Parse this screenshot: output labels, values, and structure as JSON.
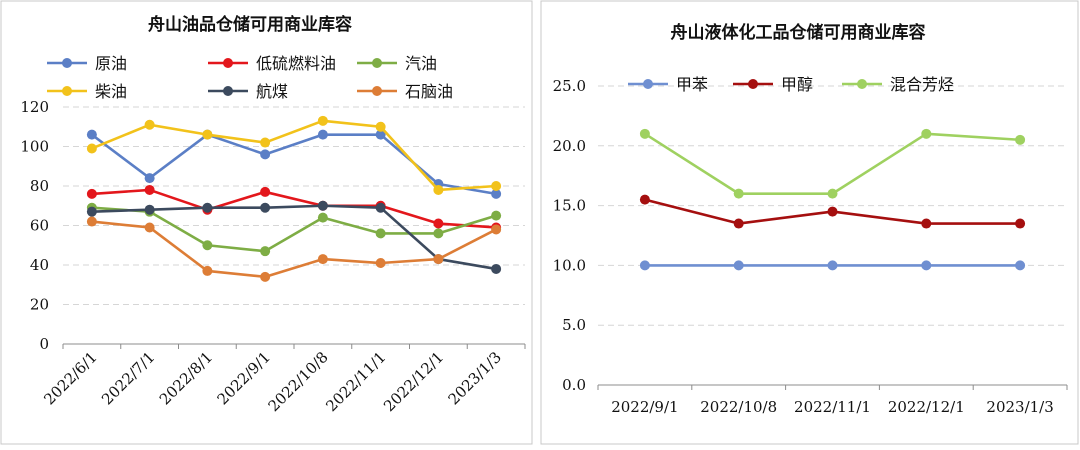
{
  "charts": {
    "left": {
      "title": "舟山油品仓储可用商业库容",
      "ytick_labels": [
        "0",
        "20",
        "40",
        "60",
        "80",
        "100",
        "120"
      ],
      "xtick_labels": [
        "2022/6/1",
        "2022/7/1",
        "2022/8/1",
        "2022/9/1",
        "2022/10/8",
        "2022/11/1",
        "2022/12/1",
        "2023/1/3"
      ]
    },
    "right": {
      "title": "舟山液体化工品仓储可用商业库容",
      "ytick_labels": [
        "0.0",
        "5.0",
        "10.0",
        "15.0",
        "20.0",
        "25.0"
      ],
      "xtick_labels": [
        "2022/9/1",
        "2022/10/8",
        "2022/11/1",
        "2022/12/1",
        "2023/1/3"
      ]
    }
  },
  "chart_data": [
    {
      "type": "line",
      "title": "舟山油品仓储可用商业库容",
      "categories": [
        "2022/6/1",
        "2022/7/1",
        "2022/8/1",
        "2022/9/1",
        "2022/10/8",
        "2022/11/1",
        "2022/12/1",
        "2023/1/3"
      ],
      "ylim": [
        0,
        120
      ],
      "ytick_step": 20,
      "grid": "horizontal dashed",
      "legend_position": "top",
      "series": [
        {
          "name": "原油",
          "color": "#5b7fc6",
          "values": [
            106,
            84,
            106,
            96,
            106,
            106,
            81,
            76
          ]
        },
        {
          "name": "低硫燃料油",
          "color": "#e3171c",
          "values": [
            76,
            78,
            68,
            77,
            70,
            70,
            61,
            59
          ]
        },
        {
          "name": "汽油",
          "color": "#7ead45",
          "values": [
            69,
            67,
            50,
            47,
            64,
            56,
            56,
            65
          ]
        },
        {
          "name": "柴油",
          "color": "#f2c21b",
          "values": [
            99,
            111,
            106,
            102,
            113,
            110,
            78,
            80
          ]
        },
        {
          "name": "航煤",
          "color": "#3c4a5e",
          "values": [
            67,
            68,
            69,
            69,
            70,
            69,
            43,
            38
          ]
        },
        {
          "name": "石脑油",
          "color": "#dd7d36",
          "values": [
            62,
            59,
            37,
            34,
            43,
            41,
            43,
            58
          ]
        }
      ]
    },
    {
      "type": "line",
      "title": "舟山液体化工品仓储可用商业库容",
      "categories": [
        "2022/9/1",
        "2022/10/8",
        "2022/11/1",
        "2022/12/1",
        "2023/1/3"
      ],
      "ylim": [
        0,
        25
      ],
      "ytick_step": 5,
      "grid": "horizontal dashed",
      "legend_position": "top",
      "series": [
        {
          "name": "甲苯",
          "color": "#6f8fd1",
          "values": [
            10.0,
            10.0,
            10.0,
            10.0,
            10.0
          ]
        },
        {
          "name": "甲醇",
          "color": "#a50f0f",
          "values": [
            15.5,
            13.5,
            14.5,
            13.5,
            13.5
          ]
        },
        {
          "name": "混合芳烃",
          "color": "#9fd160",
          "values": [
            21.0,
            16.0,
            16.0,
            21.0,
            20.5
          ]
        }
      ]
    }
  ]
}
